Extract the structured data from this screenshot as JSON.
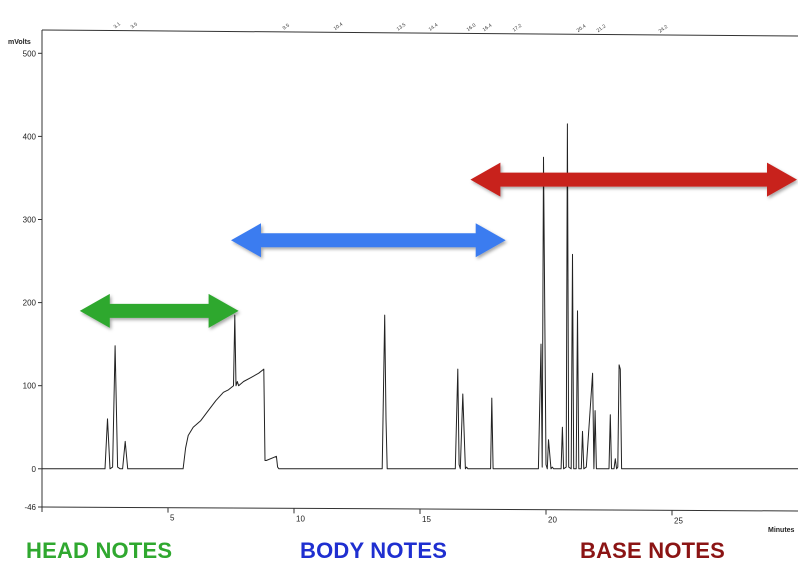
{
  "chart_data": {
    "type": "line",
    "xlabel": "Minutes",
    "ylabel": "mVolts",
    "xlim": [
      0,
      30
    ],
    "ylim": [
      -46,
      510
    ],
    "x_ticks": [
      5,
      10,
      15,
      20,
      25
    ],
    "y_ticks": [
      -46,
      0,
      100,
      200,
      300,
      400,
      500
    ],
    "grid": false,
    "series": [
      {
        "x": [
          0,
          2.5,
          2.6,
          2.7,
          2.8,
          2.9,
          3.0,
          3.1,
          3.2,
          3.3,
          3.4,
          3.5,
          3.6,
          5.6,
          5.7,
          5.8,
          6.0,
          6.3,
          6.6,
          6.9,
          7.2,
          7.4,
          7.6,
          7.65,
          7.7,
          7.75,
          7.8,
          8.0,
          8.3,
          8.6,
          8.8,
          8.85,
          8.9,
          9.3,
          9.35,
          9.4,
          13.5,
          13.6,
          13.65,
          13.7,
          13.8,
          16.4,
          16.5,
          16.55,
          16.6,
          16.7,
          16.8,
          16.85,
          16.9,
          17.0,
          17.8,
          17.85,
          17.9,
          18.0,
          19.7,
          19.8,
          19.85,
          19.9,
          20.0,
          20.05,
          20.1,
          20.2,
          20.25,
          20.3,
          20.6,
          20.65,
          20.7,
          20.8,
          20.85,
          20.9,
          21.0,
          21.05,
          21.1,
          21.2,
          21.25,
          21.3,
          21.4,
          21.45,
          21.5,
          21.6,
          21.85,
          21.9,
          21.95,
          22.0,
          22.5,
          22.55,
          22.6,
          22.7,
          22.75,
          22.8,
          22.85,
          22.9,
          22.95,
          23.0,
          23.1,
          23.15,
          23.2,
          23.3,
          23.35,
          23.4,
          23.5,
          23.55,
          23.6,
          23.65,
          23.7,
          23.8,
          30
        ],
        "y": [
          0,
          0,
          60,
          0,
          2,
          148,
          2,
          0,
          0,
          33,
          0,
          0,
          0,
          0,
          25,
          40,
          50,
          58,
          70,
          82,
          92,
          95,
          100,
          185,
          100,
          105,
          100,
          105,
          110,
          115,
          120,
          10,
          10,
          15,
          2,
          0,
          0,
          185,
          60,
          0,
          0,
          0,
          120,
          5,
          0,
          90,
          0,
          2,
          0,
          0,
          0,
          85,
          0,
          0,
          0,
          150,
          2,
          375,
          5,
          0,
          35,
          0,
          2,
          0,
          0,
          50,
          0,
          2,
          415,
          2,
          0,
          258,
          0,
          0,
          190,
          0,
          0,
          45,
          0,
          2,
          115,
          0,
          70,
          0,
          0,
          65,
          0,
          0,
          12,
          0,
          2,
          125,
          120,
          0,
          0,
          0,
          0,
          0,
          0,
          0,
          0,
          0,
          0,
          0,
          0,
          0,
          0
        ]
      }
    ],
    "peak_labels": [
      "3.1",
      "3.5",
      "9.5",
      "10.4",
      "13.5",
      "14.4",
      "16.0",
      "16.4",
      "17.2",
      "20.4",
      "21.2",
      "24.2"
    ],
    "ranges": [
      {
        "name": "HEAD NOTES",
        "x": [
          1.5,
          7.8
        ],
        "y": 190,
        "color": "#2fa82f"
      },
      {
        "name": "BODY NOTES",
        "x": [
          7.5,
          18.4
        ],
        "y": 275,
        "color": "#3b7bf0"
      },
      {
        "name": "BASE NOTES",
        "x": [
          17.0,
          30.5
        ],
        "y": 348,
        "color": "#c8201e"
      }
    ]
  },
  "colors": {
    "trace": "#222222",
    "axis": "#333333"
  }
}
